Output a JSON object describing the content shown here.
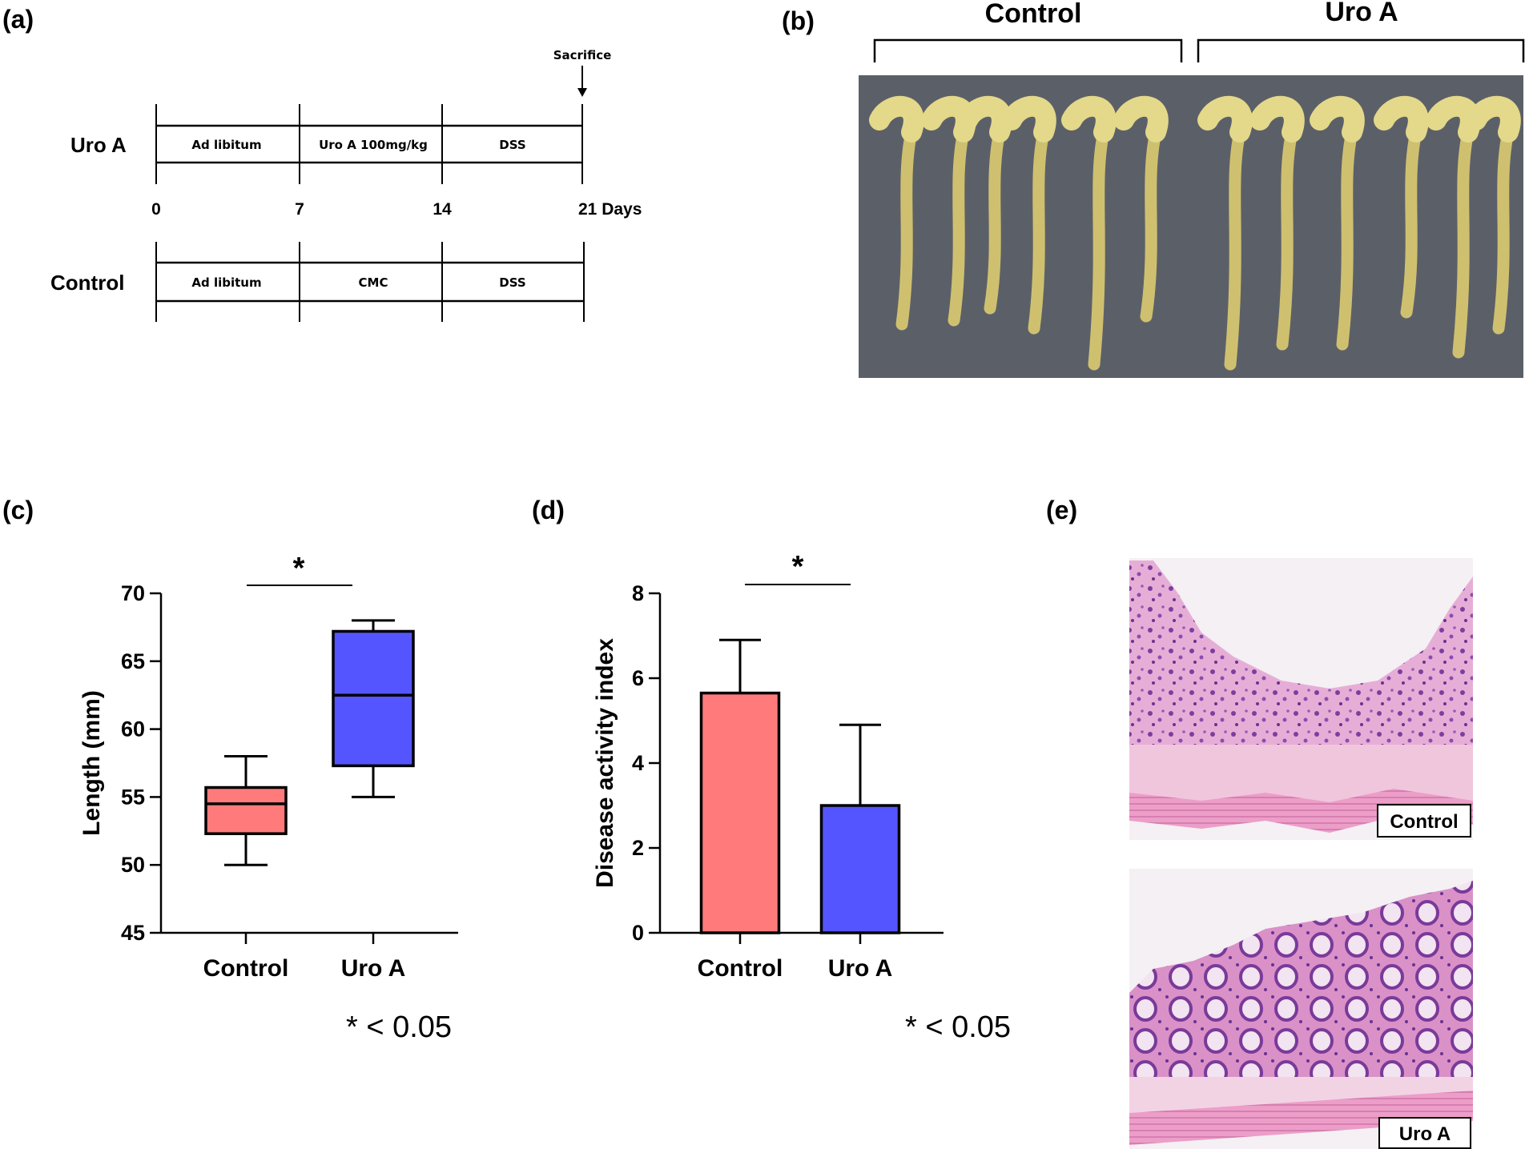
{
  "panels": {
    "a": "(a)",
    "b": "(b)",
    "c": "(c)",
    "d": "(d)",
    "e": "(e)"
  },
  "timeline": {
    "sacrifice": "Sacrifice",
    "uro_group": "Uro A",
    "control_group": "Control",
    "uro_phases": [
      "Ad libitum",
      "Uro A 100mg/kg",
      "DSS"
    ],
    "control_phases": [
      "Ad libitum",
      "CMC",
      "DSS"
    ],
    "day_ticks": [
      "0",
      "7",
      "14",
      "21 Days"
    ]
  },
  "photo": {
    "control_label": "Control",
    "uro_label": "Uro A",
    "colon_color": "#cfc070",
    "background_color": "#5b6068"
  },
  "chart_data": [
    {
      "type": "box",
      "panel": "c",
      "categories": [
        "Control",
        "Uro A"
      ],
      "ylabel": "Length (mm)",
      "ylim": [
        45,
        70
      ],
      "yticks": [
        "45",
        "50",
        "55",
        "60",
        "65",
        "70"
      ],
      "boxes": [
        {
          "name": "Control",
          "min": 50,
          "q1": 52.3,
          "median": 54.5,
          "q3": 55.7,
          "max": 58,
          "color": "#ff7b7b"
        },
        {
          "name": "Uro A",
          "min": 55,
          "q1": 57.3,
          "median": 62.5,
          "q3": 67.2,
          "max": 68,
          "color": "#5555ff"
        }
      ],
      "significance": "*",
      "pvalue_note": "* < 0.05"
    },
    {
      "type": "bar",
      "panel": "d",
      "categories": [
        "Control",
        "Uro A"
      ],
      "values": [
        5.65,
        3.0
      ],
      "errors": [
        1.25,
        1.9
      ],
      "colors": [
        "#ff7b7b",
        "#5555ff"
      ],
      "ylabel": "Disease activity index",
      "ylim": [
        0,
        8
      ],
      "yticks": [
        "0",
        "2",
        "4",
        "6",
        "8"
      ],
      "significance": "*",
      "pvalue_note": "* < 0.05"
    }
  ],
  "histology": {
    "top_label": "Control",
    "bottom_label": "Uro A"
  }
}
